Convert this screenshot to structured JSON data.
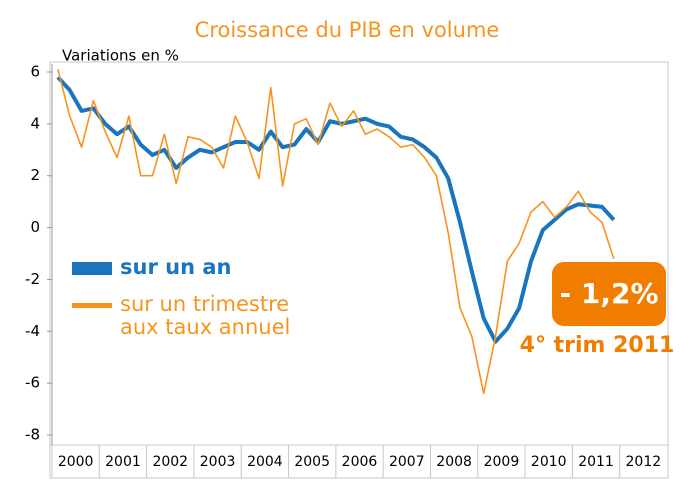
{
  "chart_data": {
    "type": "line",
    "title": "Croissance du PIB en volume",
    "y_label": "Variations en %",
    "x": [
      2000.125,
      2000.375,
      2000.625,
      2000.875,
      2001.125,
      2001.375,
      2001.625,
      2001.875,
      2002.125,
      2002.375,
      2002.625,
      2002.875,
      2003.125,
      2003.375,
      2003.625,
      2003.875,
      2004.125,
      2004.375,
      2004.625,
      2004.875,
      2005.125,
      2005.375,
      2005.625,
      2005.875,
      2006.125,
      2006.375,
      2006.625,
      2006.875,
      2007.125,
      2007.375,
      2007.625,
      2007.875,
      2008.125,
      2008.375,
      2008.625,
      2008.875,
      2009.125,
      2009.375,
      2009.625,
      2009.875,
      2010.125,
      2010.375,
      2010.625,
      2010.875,
      2011.125,
      2011.375,
      2011.625,
      2011.875
    ],
    "series": [
      {
        "name": "sur un an",
        "color": "#1b75bc",
        "values": [
          5.8,
          5.3,
          4.5,
          4.6,
          4.0,
          3.6,
          3.9,
          3.2,
          2.8,
          3.0,
          2.3,
          2.7,
          3.0,
          2.9,
          3.1,
          3.3,
          3.3,
          3.0,
          3.7,
          3.1,
          3.2,
          3.8,
          3.3,
          4.1,
          4.0,
          4.1,
          4.2,
          4.0,
          3.9,
          3.5,
          3.4,
          3.1,
          2.7,
          1.9,
          0.2,
          -1.7,
          -3.5,
          -4.4,
          -3.9,
          -3.1,
          -1.3,
          -0.1,
          0.3,
          0.7,
          0.9,
          0.85,
          0.8,
          0.3
        ]
      },
      {
        "name": "sur un trimestre aux taux annuel",
        "color": "#f7941d",
        "values": [
          6.1,
          4.3,
          3.1,
          4.9,
          3.7,
          2.7,
          4.3,
          2.0,
          2.0,
          3.6,
          1.7,
          3.5,
          3.4,
          3.1,
          2.3,
          4.3,
          3.3,
          1.9,
          5.4,
          1.6,
          4.0,
          4.2,
          3.2,
          4.8,
          3.9,
          4.5,
          3.6,
          3.8,
          3.5,
          3.1,
          3.2,
          2.7,
          2.0,
          -0.2,
          -3.1,
          -4.2,
          -6.4,
          -4.2,
          -1.3,
          -0.6,
          0.6,
          1.0,
          0.4,
          0.8,
          1.4,
          0.6,
          0.2,
          -1.2
        ]
      }
    ],
    "xlim": [
      2000,
      2013
    ],
    "xticks": [
      2000,
      2001,
      2002,
      2003,
      2004,
      2005,
      2006,
      2007,
      2008,
      2009,
      2010,
      2011,
      2012
    ],
    "ylim": [
      -8,
      6
    ],
    "yticks": [
      -8,
      -6,
      -4,
      -2,
      0,
      2,
      4,
      6
    ],
    "annotations": [
      {
        "text": "- 1,2%"
      },
      {
        "text": "4° trim 2011"
      }
    ]
  }
}
